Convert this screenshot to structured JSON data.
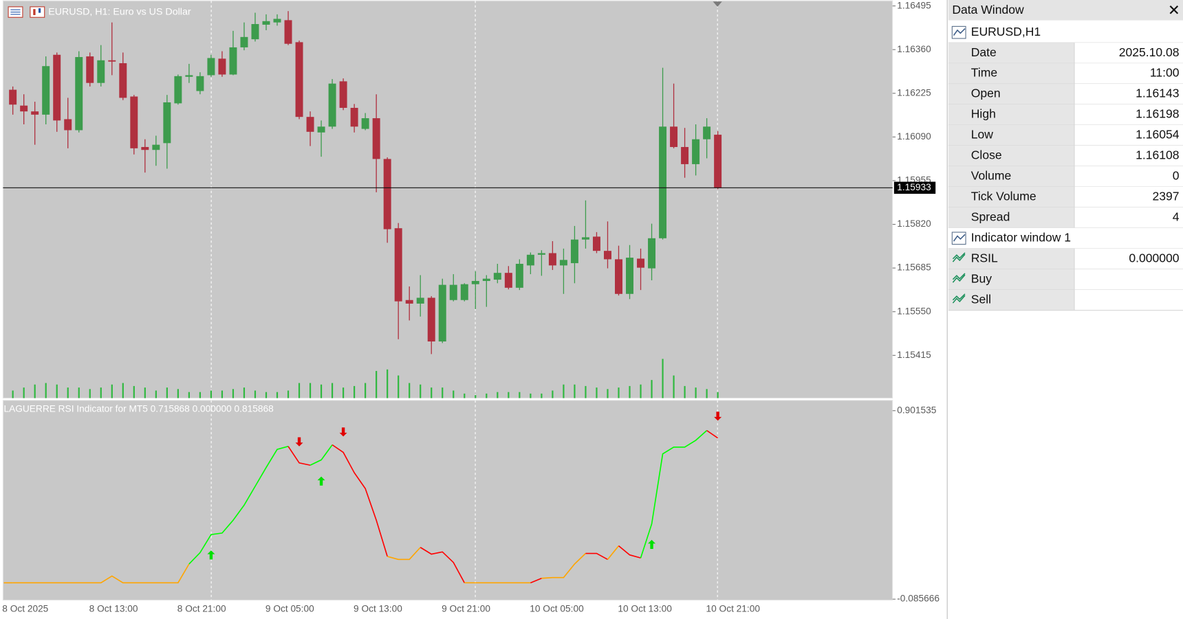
{
  "chart_data": [
    {
      "type": "candlestick",
      "title": "EURUSD, H1:  Euro vs US Dollar",
      "categories": [
        "8 Oct 2025",
        null,
        null,
        null,
        null,
        null,
        null,
        "8 Oct 13:00",
        null,
        null,
        null,
        null,
        null,
        null,
        null,
        "8 Oct 21:00",
        null,
        null,
        null,
        null,
        null,
        null,
        null,
        "9 Oct 05:00",
        null,
        null,
        null,
        null,
        null,
        null,
        null,
        "9 Oct 13:00",
        null,
        null,
        null,
        null,
        null,
        null,
        null,
        "9 Oct 21:00",
        null,
        null,
        null,
        null,
        null,
        null,
        null,
        "10 Oct 05:00",
        null,
        null,
        null,
        null,
        null,
        null,
        null,
        "10 Oct 13:00",
        null,
        null,
        null,
        null,
        null,
        null,
        null,
        "10 Oct 21:00",
        null
      ],
      "open": [
        1.16236,
        1.16187,
        1.16169,
        1.16159,
        1.16344,
        1.16145,
        1.16111,
        1.16339,
        1.16257,
        1.16327,
        1.16318,
        1.16215,
        1.16059,
        1.1605,
        1.16071,
        1.16194,
        1.16276,
        1.16232,
        1.16281,
        1.16332,
        1.16283,
        1.16367,
        1.16392,
        1.16437,
        1.16444,
        1.16451,
        1.16383,
        1.16152,
        1.16104,
        1.16122,
        1.16262,
        1.1618,
        1.16115,
        1.16148,
        1.16022,
        1.15808,
        1.15586,
        1.15575,
        1.15593,
        1.15458,
        1.15586,
        1.15586,
        1.15635,
        1.15645,
        1.15649,
        1.1567,
        1.15624,
        1.15693,
        1.15726,
        1.15731,
        1.15693,
        1.157,
        1.15773,
        1.15782,
        1.15738,
        1.15712,
        1.15605,
        1.15714,
        1.15684,
        1.15777,
        1.16122,
        1.16059,
        1.16006,
        1.16083,
        1.16097
      ],
      "high": [
        1.16246,
        1.16222,
        1.16199,
        1.16339,
        1.16351,
        1.16211,
        1.16355,
        1.16351,
        1.16374,
        1.16444,
        1.16351,
        1.1622,
        1.16083,
        1.16094,
        1.1622,
        1.16283,
        1.16316,
        1.1629,
        1.16344,
        1.16355,
        1.16418,
        1.16444,
        1.16474,
        1.16469,
        1.16469,
        1.16479,
        1.16388,
        1.16169,
        1.16141,
        1.16269,
        1.16271,
        1.16192,
        1.16164,
        1.16222,
        1.16027,
        1.15824,
        1.15628,
        1.15663,
        1.15598,
        1.15652,
        1.15666,
        1.15638,
        1.15675,
        1.15663,
        1.15698,
        1.15691,
        1.15712,
        1.15733,
        1.1574,
        1.15768,
        1.15745,
        1.15815,
        1.15894,
        1.15796,
        1.15829,
        1.15754,
        1.15756,
        1.15745,
        1.15822,
        1.16304,
        1.16255,
        1.16118,
        1.16129,
        1.16148,
        1.16108
      ],
      "low": [
        1.16159,
        1.16129,
        1.16066,
        1.16129,
        1.16106,
        1.16055,
        1.16104,
        1.16246,
        1.16246,
        1.16281,
        1.16204,
        1.16036,
        1.1598,
        1.16001,
        1.15992,
        1.1619,
        1.16257,
        1.16222,
        1.16276,
        1.16276,
        1.16281,
        1.16358,
        1.16385,
        1.1642,
        1.16434,
        1.16374,
        1.16145,
        1.16062,
        1.16029,
        1.16115,
        1.16173,
        1.16104,
        1.16111,
        1.15919,
        1.15763,
        1.15465,
        1.15523,
        1.15535,
        1.15419,
        1.15453,
        1.15582,
        1.15582,
        1.15558,
        1.15565,
        1.15638,
        1.15619,
        1.15617,
        1.15666,
        1.15661,
        1.15679,
        1.15605,
        1.15638,
        1.15745,
        1.15731,
        1.15684,
        1.156,
        1.15589,
        1.15617,
        1.15647,
        1.15773,
        1.16055,
        1.15964,
        1.15971,
        1.16024,
        1.15929
      ],
      "close": [
        1.1619,
        1.16169,
        1.16159,
        1.16309,
        1.16141,
        1.16111,
        1.16337,
        1.16257,
        1.16327,
        1.16323,
        1.16211,
        1.16055,
        1.1605,
        1.16066,
        1.16197,
        1.16278,
        1.16281,
        1.16278,
        1.16334,
        1.16283,
        1.16367,
        1.16399,
        1.16439,
        1.16448,
        1.16455,
        1.16378,
        1.16152,
        1.16106,
        1.16122,
        1.16255,
        1.1618,
        1.16122,
        1.16148,
        1.16022,
        1.15805,
        1.15582,
        1.15575,
        1.15593,
        1.15458,
        1.15633,
        1.15633,
        1.15635,
        1.15645,
        1.15652,
        1.1567,
        1.15624,
        1.15698,
        1.15726,
        1.15731,
        1.15693,
        1.1571,
        1.15773,
        1.1578,
        1.15738,
        1.15712,
        1.15605,
        1.15717,
        1.15686,
        1.15777,
        1.16122,
        1.16059,
        1.16006,
        1.16083,
        1.16122,
        1.15933
      ],
      "volumes": [
        10,
        14,
        18,
        20,
        18,
        14,
        14,
        12,
        14,
        18,
        20,
        16,
        14,
        10,
        14,
        12,
        8,
        8,
        10,
        10,
        12,
        14,
        10,
        8,
        8,
        10,
        20,
        20,
        18,
        20,
        14,
        16,
        20,
        36,
        38,
        30,
        20,
        18,
        14,
        14,
        10,
        6,
        4,
        6,
        8,
        8,
        8,
        6,
        6,
        10,
        18,
        18,
        16,
        14,
        12,
        14,
        16,
        18,
        24,
        52,
        30,
        16,
        14,
        12,
        8
      ],
      "up_color": "#3d9c4d",
      "down_color": "#b0303f",
      "volume_color": "#2fb83f",
      "ylim": [
        1.15283,
        1.16511
      ],
      "yticks": [
        1.16495,
        {
          "value": 1.1636,
          "label": "1.16360"
        },
        1.16225,
        {
          "value": 1.1609,
          "label": "1.16090"
        },
        1.15955,
        {
          "value": 1.1582,
          "label": "1.15820"
        },
        1.15685,
        {
          "value": 1.1555,
          "label": "1.15550"
        },
        1.15415
      ],
      "last_price": 1.15933
    },
    {
      "type": "line",
      "title": "LAGUERRE RSI Indicator for MT5 0.715868 0.000000 0.815868",
      "series": [
        {
          "values": [
            0,
            0,
            0,
            0,
            0,
            0,
            0,
            0,
            0,
            0.0355,
            0,
            0,
            0,
            0,
            0,
            0,
            0.0987,
            0.158,
            0.2527,
            0.2606,
            0.3278,
            0.4067,
            0.5054,
            0.6042,
            0.6989,
            0.7147,
            0.6279,
            0.616,
            0.6437,
            0.7226,
            0.6831,
            0.5765,
            0.4936,
            0.3278,
            0.1382,
            0.1224,
            0.1224,
            0.1856,
            0.1501,
            0.1619,
            0.1066,
            0,
            0,
            0,
            0,
            0,
            0,
            0,
            0.0237,
            0.0276,
            0.0276,
            0.0987,
            0.154,
            0.154,
            0.1224,
            0.1935,
            0.1461,
            0.1303,
            0.308,
            0.6752,
            0.7108,
            0.7108,
            0.7463,
            0.7977,
            0.7582
          ],
          "point_colors": [
            "orange",
            "orange",
            "orange",
            "orange",
            "orange",
            "orange",
            "orange",
            "orange",
            "orange",
            "orange",
            "orange",
            "orange",
            "orange",
            "orange",
            "orange",
            "orange",
            "orange",
            "lime",
            "lime",
            "lime",
            "lime",
            "lime",
            "lime",
            "lime",
            "lime",
            "lime",
            "red",
            "red",
            "lime",
            "lime",
            "red",
            "red",
            "red",
            "red",
            "red",
            "orange",
            "orange",
            "orange",
            "red",
            "red",
            "red",
            "red",
            "orange",
            "orange",
            "orange",
            "orange",
            "orange",
            "orange",
            "red",
            "orange",
            "orange",
            "orange",
            "orange",
            "red",
            "red",
            "orange",
            "red",
            "red",
            "lime",
            "lime",
            "lime",
            "lime",
            "lime",
            "lime",
            "red"
          ]
        }
      ],
      "buy": {
        "color": "#00e000",
        "values": [
          null,
          null,
          null,
          null,
          null,
          null,
          null,
          null,
          null,
          null,
          null,
          null,
          null,
          null,
          null,
          null,
          null,
          null,
          0.146,
          null,
          null,
          null,
          null,
          null,
          null,
          null,
          null,
          null,
          0.533,
          null,
          null,
          null,
          null,
          null,
          null,
          null,
          null,
          null,
          null,
          null,
          null,
          null,
          null,
          null,
          null,
          null,
          null,
          null,
          null,
          null,
          null,
          null,
          null,
          null,
          null,
          null,
          null,
          null,
          0.2014,
          null,
          null,
          null,
          null,
          null,
          null
        ]
      },
      "sell": {
        "color": "#e00000",
        "values": [
          null,
          null,
          null,
          null,
          null,
          null,
          null,
          null,
          null,
          null,
          null,
          null,
          null,
          null,
          null,
          null,
          null,
          null,
          null,
          null,
          null,
          null,
          null,
          null,
          null,
          null,
          0.7384,
          null,
          null,
          null,
          0.7898,
          null,
          null,
          null,
          null,
          null,
          null,
          null,
          null,
          null,
          null,
          null,
          null,
          null,
          null,
          null,
          null,
          null,
          null,
          null,
          null,
          null,
          null,
          null,
          null,
          null,
          null,
          null,
          null,
          null,
          null,
          null,
          null,
          null,
          0.8727
        ]
      },
      "ylim": [
        -0.0908,
        0.9556
      ],
      "yticks": [
        0.901535,
        -0.085666
      ]
    }
  ],
  "data_window": {
    "title": "Data Window",
    "symbol": "EURUSD,H1",
    "rows": [
      [
        "Date",
        "2025.10.08"
      ],
      [
        "Time",
        "11:00"
      ],
      [
        "Open",
        "1.16143"
      ],
      [
        "High",
        "1.16198"
      ],
      [
        "Low",
        "1.16054"
      ],
      [
        "Close",
        "1.16108"
      ],
      [
        "Volume",
        "0"
      ],
      [
        "Tick Volume",
        "2397"
      ],
      [
        "Spread",
        "4"
      ]
    ],
    "indicator": "Indicator window 1",
    "indicator_rows": [
      [
        "RSIL",
        "0.000000"
      ],
      [
        "Buy"
      ],
      [
        "Sell"
      ]
    ]
  }
}
